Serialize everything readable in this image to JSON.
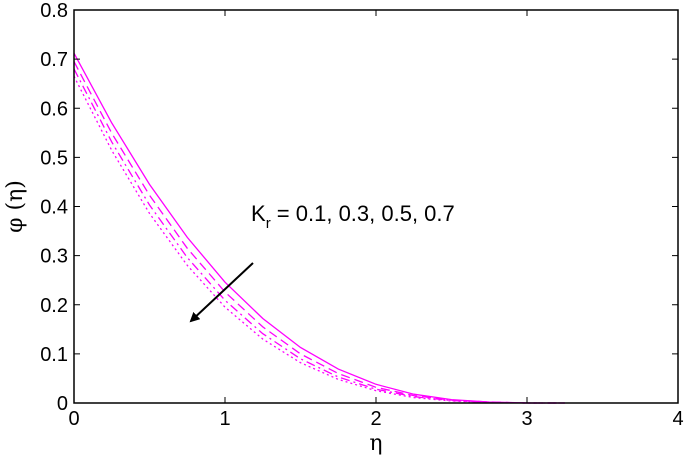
{
  "chart_data": {
    "type": "line",
    "xlabel": "η",
    "ylabel": "φ (η)",
    "xlim": [
      0,
      4
    ],
    "ylim": [
      0,
      0.8
    ],
    "x_ticks": [
      "0",
      "1",
      "2",
      "3",
      "4"
    ],
    "y_ticks": [
      "0",
      "0.1",
      "0.2",
      "0.3",
      "0.4",
      "0.5",
      "0.6",
      "0.7",
      "0.8"
    ],
    "grid": false,
    "line_color": "#ff00ff",
    "x": [
      0,
      0.25,
      0.5,
      0.75,
      1,
      1.25,
      1.5,
      1.75,
      2,
      2.25,
      2.5,
      2.75,
      3,
      3.25
    ],
    "series": [
      {
        "line_style": "solid",
        "values": [
          0.712,
          0.57,
          0.445,
          0.337,
          0.246,
          0.172,
          0.113,
          0.069,
          0.038,
          0.018,
          0.007,
          0.002,
          0.0,
          0.0
        ]
      },
      {
        "line_style": "dashed",
        "values": [
          0.695,
          0.549,
          0.423,
          0.315,
          0.226,
          0.155,
          0.1,
          0.06,
          0.032,
          0.015,
          0.006,
          0.002,
          0.0,
          0.0
        ]
      },
      {
        "line_style": "dashdot",
        "values": [
          0.68,
          0.531,
          0.403,
          0.296,
          0.209,
          0.141,
          0.09,
          0.053,
          0.028,
          0.013,
          0.005,
          0.001,
          0.0,
          0.0
        ]
      },
      {
        "line_style": "dotted",
        "values": [
          0.665,
          0.514,
          0.386,
          0.28,
          0.195,
          0.13,
          0.082,
          0.048,
          0.025,
          0.011,
          0.004,
          0.001,
          0.0,
          0.0
        ]
      }
    ],
    "annotation": {
      "main": "K",
      "subscript": "r",
      "text": " = 0.1, 0.3, 0.5, 0.7",
      "arrow": "pointing toward lower-left, direction of increasing K_r"
    }
  }
}
